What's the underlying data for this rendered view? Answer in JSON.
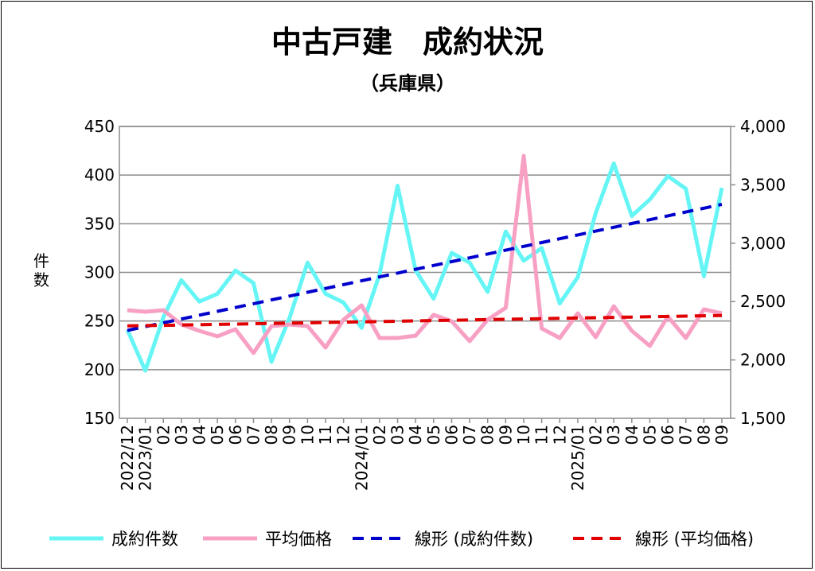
{
  "chart_data": {
    "type": "line",
    "title": "中古戸建　成約状況",
    "subtitle": "（兵庫県）",
    "ylabel": "件数",
    "ylim": [
      150,
      450
    ],
    "yticks": [
      "150",
      "200",
      "250",
      "300",
      "350",
      "400",
      "450"
    ],
    "y2lim": [
      1500,
      4000
    ],
    "y2ticks": [
      "1,500",
      "2,000",
      "2,500",
      "3,000",
      "3,500",
      "4,000"
    ],
    "grid": true,
    "legend": "bottom",
    "categories": [
      "2022/12",
      "2023/01",
      "02",
      "03",
      "04",
      "05",
      "06",
      "07",
      "08",
      "09",
      "10",
      "11",
      "12",
      "2024/01",
      "02",
      "03",
      "04",
      "05",
      "06",
      "07",
      "08",
      "09",
      "10",
      "11",
      "12",
      "2025/01",
      "02",
      "03",
      "04",
      "05",
      "06",
      "07",
      "08",
      "09"
    ],
    "series": [
      {
        "name": "成約件数",
        "axis": "left",
        "color": "#66f5f5",
        "values": [
          241,
          199,
          254,
          292,
          270,
          278,
          302,
          289,
          208,
          253,
          310,
          278,
          269,
          243,
          298,
          389,
          302,
          273,
          320,
          310,
          280,
          342,
          312,
          325,
          268,
          295,
          361,
          412,
          358,
          375,
          399,
          386,
          296,
          387
        ]
      },
      {
        "name": "平均価格",
        "axis": "right",
        "color": "#f7a0c4",
        "values": [
          2426,
          2413,
          2426,
          2304,
          2249,
          2202,
          2263,
          2059,
          2290,
          2304,
          2290,
          2106,
          2345,
          2467,
          2188,
          2188,
          2208,
          2386,
          2331,
          2161,
          2345,
          2447,
          3748,
          2270,
          2188,
          2399,
          2195,
          2460,
          2249,
          2120,
          2372,
          2188,
          2433,
          2399
        ]
      },
      {
        "name": "線形 (成約件数)",
        "axis": "left",
        "color": "#0000cc",
        "trendline_of": 0,
        "dashed": true
      },
      {
        "name": "線形 (平均価格)",
        "axis": "right",
        "color": "#e00000",
        "trendline_of": 1,
        "dashed": true
      }
    ]
  }
}
